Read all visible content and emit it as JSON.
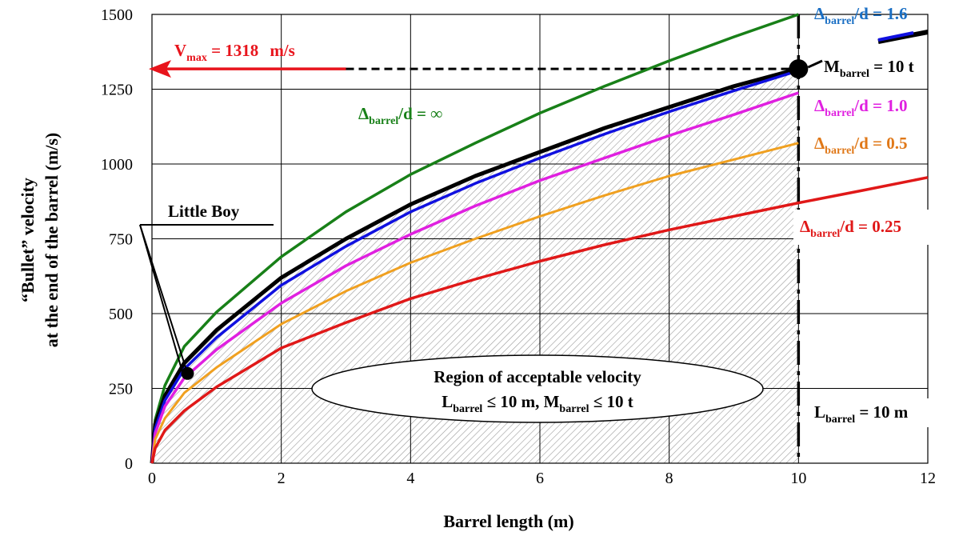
{
  "chart_data": {
    "type": "line",
    "xlabel": "Barrel length (m)",
    "ylabel_lines": [
      "“Bullet” velocity",
      "at the end of the barrel (m/s)"
    ],
    "xlim": [
      0,
      12
    ],
    "ylim": [
      0,
      1500
    ],
    "x_ticks": [
      0,
      2,
      4,
      6,
      8,
      10,
      12
    ],
    "y_ticks": [
      0,
      250,
      500,
      750,
      1000,
      1250,
      1500
    ],
    "grid": true,
    "series": [
      {
        "key": "inf",
        "color": "#188018",
        "x": [
          0,
          0.05,
          0.2,
          0.5,
          1,
          2,
          3,
          4,
          5,
          6,
          7,
          8,
          9,
          10
        ],
        "y": [
          0,
          145,
          260,
          390,
          505,
          690,
          840,
          965,
          1070,
          1170,
          1260,
          1345,
          1425,
          1500
        ]
      },
      {
        "key": "black",
        "color": "#000000",
        "x": [
          0,
          0.05,
          0.2,
          0.5,
          1,
          2,
          3,
          4,
          5,
          6,
          7,
          8,
          9,
          10
        ],
        "y": [
          0,
          130,
          225,
          335,
          445,
          620,
          750,
          865,
          960,
          1040,
          1120,
          1190,
          1260,
          1318
        ]
      },
      {
        "key": "d16",
        "color": "#1010e0",
        "x": [
          0,
          0.05,
          0.2,
          0.5,
          1,
          2,
          3,
          4,
          5,
          6,
          7,
          8,
          9,
          10
        ],
        "y": [
          0,
          115,
          210,
          315,
          420,
          595,
          725,
          840,
          935,
          1020,
          1100,
          1175,
          1245,
          1312
        ]
      },
      {
        "key": "d10",
        "color": "#e020e0",
        "x": [
          0,
          0.05,
          0.2,
          0.5,
          1,
          2,
          3,
          4,
          5,
          6,
          7,
          8,
          9,
          10
        ],
        "y": [
          0,
          100,
          190,
          285,
          380,
          535,
          660,
          765,
          860,
          945,
          1020,
          1095,
          1165,
          1238
        ]
      },
      {
        "key": "d05",
        "color": "#f0a020",
        "x": [
          0,
          0.05,
          0.2,
          0.5,
          1,
          2,
          3,
          4,
          5,
          6,
          7,
          8,
          9,
          10
        ],
        "y": [
          0,
          80,
          150,
          235,
          320,
          465,
          575,
          670,
          750,
          825,
          895,
          960,
          1015,
          1070
        ]
      },
      {
        "key": "d025",
        "color": "#e01818",
        "x": [
          0,
          0.05,
          0.2,
          0.5,
          1,
          2,
          3,
          4,
          5,
          6,
          7,
          8,
          9,
          10,
          11,
          12
        ],
        "y": [
          0,
          50,
          110,
          175,
          255,
          385,
          470,
          550,
          615,
          675,
          730,
          780,
          825,
          870,
          912,
          955
        ]
      }
    ],
    "point_little_boy": {
      "x": 0.55,
      "y": 300
    },
    "point_max": {
      "x": 10,
      "y": 1318
    },
    "vmax_value": 1318,
    "vmax_arrow_tail_x": 3,
    "barrel_limit_x": 10,
    "colors": {
      "green": "#188018",
      "blue": "#1a6fc4",
      "pink": "#e020e0",
      "orange": "#e07818",
      "red": "#e01818",
      "arrow_red": "#e8141c"
    },
    "annotations": {
      "vmax": {
        "main": "V",
        "sub": "max",
        "rest": " = 1318",
        "unit": "m/s"
      },
      "d_inf": {
        "main": "Δ",
        "sub": "barrel",
        "rest": "/d = ∞"
      },
      "d16": {
        "main": "Δ",
        "sub": "barrel",
        "rest": "/d = 1.6"
      },
      "mbarrel": {
        "main": "M",
        "sub": "barrel",
        "rest": " = 10 t"
      },
      "d10": {
        "main": "Δ",
        "sub": "barrel",
        "rest": "/d = 1.0"
      },
      "d05": {
        "main": "Δ",
        "sub": "barrel",
        "rest": "/d = 0.5"
      },
      "d025": {
        "main": "Δ",
        "sub": "barrel",
        "rest": "/d = 0.25"
      },
      "little_boy": "Little Boy",
      "region_line1": "Region of acceptable velocity",
      "region_line2": {
        "a": "L",
        "a_sub": "barrel",
        "b": " ≤ 10 m, M",
        "b_sub": "barrel",
        "c": " ≤ 10 t"
      },
      "lbarrel": {
        "main": "L",
        "sub": "barrel",
        "rest": " = 10 m"
      }
    }
  }
}
